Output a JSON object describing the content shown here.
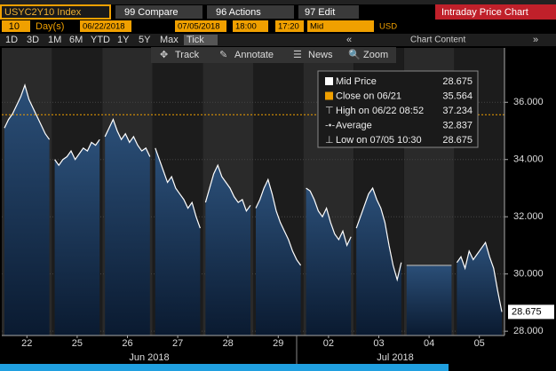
{
  "toolbar": {
    "ticker": "USYC2Y10 Index",
    "compare": "99 Compare",
    "actions": "96 Actions",
    "edit": "97 Edit",
    "title": "Intraday Price Chart"
  },
  "range": {
    "count": "10",
    "unit": "Day(s)",
    "start": "06/22/2018",
    "end": "07/05/2018",
    "start_time": "18:00",
    "end_time": "17:20",
    "field": "Mid",
    "currency": "USD"
  },
  "periods": [
    "1D",
    "3D",
    "1M",
    "6M",
    "YTD",
    "1Y",
    "5Y",
    "Max",
    "Tick"
  ],
  "chart_content": "Chart Content",
  "chart_tools": [
    "Track",
    "Annotate",
    "News",
    "Zoom"
  ],
  "legend": [
    {
      "label": "Mid Price",
      "value": "28.675"
    },
    {
      "label": "Close on 06/21",
      "value": "35.564"
    },
    {
      "label": "High on 06/22 08:52",
      "value": "37.234"
    },
    {
      "label": "Average",
      "value": "32.837"
    },
    {
      "label": "Low on 07/05 10:30",
      "value": "28.675"
    }
  ],
  "chart_data": {
    "type": "area",
    "ylim": [
      27.85,
      37.9
    ],
    "yticks": [
      {
        "value": 28,
        "label": "28.000"
      },
      {
        "value": 30,
        "label": "30.000"
      },
      {
        "value": 32,
        "label": "32.000"
      },
      {
        "value": 34,
        "label": "34.000"
      },
      {
        "value": 36,
        "label": "36.000"
      }
    ],
    "close_line": 35.564,
    "last": {
      "value": 28.675,
      "label": "28.675"
    },
    "months": [
      "Jun 2018",
      "Jul 2018"
    ],
    "days": [
      {
        "label": "22",
        "values": [
          35.1,
          35.4,
          35.6,
          35.9,
          36.2,
          36.6,
          36.1,
          35.8,
          35.5,
          35.2,
          34.9,
          34.7
        ]
      },
      {
        "label": "25",
        "values": [
          34.0,
          33.8,
          34.0,
          34.1,
          34.3,
          34.0,
          34.2,
          34.4,
          34.3,
          34.6,
          34.5,
          34.7
        ]
      },
      {
        "label": "26",
        "values": [
          34.8,
          35.1,
          35.4,
          35.0,
          34.7,
          34.9,
          34.6,
          34.8,
          34.5,
          34.3,
          34.4,
          34.1
        ]
      },
      {
        "label": "27",
        "values": [
          34.4,
          34.0,
          33.6,
          33.2,
          33.4,
          33.0,
          32.8,
          32.6,
          32.3,
          32.5,
          32.0,
          31.6
        ]
      },
      {
        "label": "28",
        "values": [
          32.5,
          33.0,
          33.5,
          33.8,
          33.4,
          33.2,
          33.0,
          32.7,
          32.5,
          32.6,
          32.2,
          32.4
        ]
      },
      {
        "label": "29",
        "values": [
          32.3,
          32.6,
          33.0,
          33.3,
          32.8,
          32.2,
          31.8,
          31.5,
          31.2,
          30.8,
          30.5,
          30.3
        ]
      },
      {
        "label": "02",
        "values": [
          33.0,
          32.9,
          32.6,
          32.2,
          32.0,
          32.3,
          31.8,
          31.4,
          31.2,
          31.5,
          31.0,
          31.3
        ]
      },
      {
        "label": "03",
        "values": [
          31.6,
          32.0,
          32.4,
          32.8,
          33.0,
          32.6,
          32.3,
          31.8,
          31.0,
          30.3,
          29.8,
          30.4
        ]
      },
      {
        "label": "04",
        "values": [
          30.3,
          30.3,
          30.3,
          30.3,
          30.3,
          30.3,
          30.3,
          30.3,
          30.3,
          30.3,
          30.3,
          30.3
        ]
      },
      {
        "label": "05",
        "values": [
          30.4,
          30.6,
          30.2,
          30.8,
          30.5,
          30.7,
          30.9,
          31.1,
          30.6,
          30.2,
          29.4,
          28.675
        ]
      }
    ]
  }
}
